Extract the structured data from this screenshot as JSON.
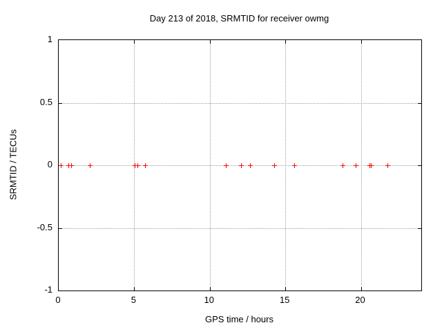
{
  "chart_data": {
    "type": "scatter",
    "title": "Day 213 of 2018, SRMTID for receiver owmg",
    "xlabel": "GPS time / hours",
    "ylabel": "SRMTID / TECUs",
    "xlim": [
      0,
      24
    ],
    "ylim": [
      -1,
      1
    ],
    "x_ticks": [
      0,
      5,
      10,
      15,
      20
    ],
    "x_tick_labels": [
      "0",
      "5",
      "10",
      "15",
      "20"
    ],
    "y_ticks": [
      -1,
      -0.5,
      0,
      0.5,
      1
    ],
    "y_tick_labels": [
      "-1",
      "-0.5",
      "0",
      "0.5",
      "1"
    ],
    "grid": true,
    "legend": "none",
    "marker": "plus",
    "marker_color": "#ff0000",
    "grid_color": "#9b9b9b",
    "border_color": "#000000",
    "background_color": "#ffffff",
    "series": [
      {
        "name": "SRMTID",
        "x": [
          0.15,
          0.65,
          0.85,
          2.1,
          5.05,
          5.25,
          5.75,
          11.1,
          12.1,
          12.7,
          14.3,
          15.6,
          18.8,
          19.7,
          20.6,
          20.7,
          21.8
        ],
        "y": [
          0,
          0,
          0,
          0,
          0,
          0,
          0,
          0,
          0,
          0,
          0,
          0,
          0,
          0,
          0,
          0,
          0
        ]
      }
    ]
  }
}
